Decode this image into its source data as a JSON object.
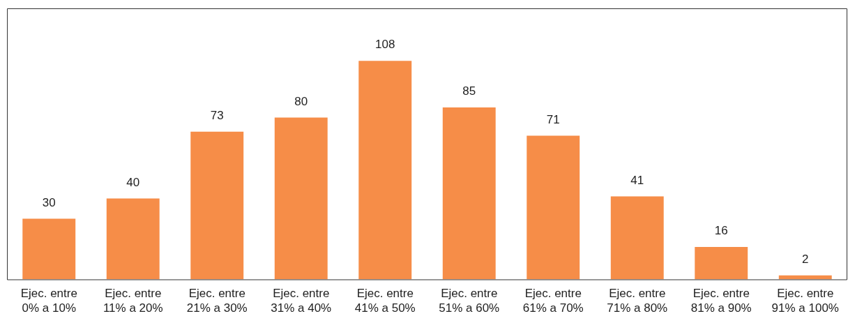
{
  "chart_data": {
    "type": "bar",
    "categories": [
      "Ejec. entre\n0% a 10%",
      "Ejec. entre\n11% a 20%",
      "Ejec. entre\n21% a 30%",
      "Ejec. entre\n31% a 40%",
      "Ejec. entre\n41% a 50%",
      "Ejec. entre\n51% a 60%",
      "Ejec. entre\n61% a 70%",
      "Ejec. entre\n71% a 80%",
      "Ejec. entre\n81% a 90%",
      "Ejec. entre\n91% a 100%"
    ],
    "values": [
      30,
      40,
      73,
      80,
      108,
      85,
      71,
      41,
      16,
      2
    ],
    "color": "#f68d48",
    "data_labels": true,
    "grid": false,
    "legend": false,
    "tick_labels": "x"
  }
}
